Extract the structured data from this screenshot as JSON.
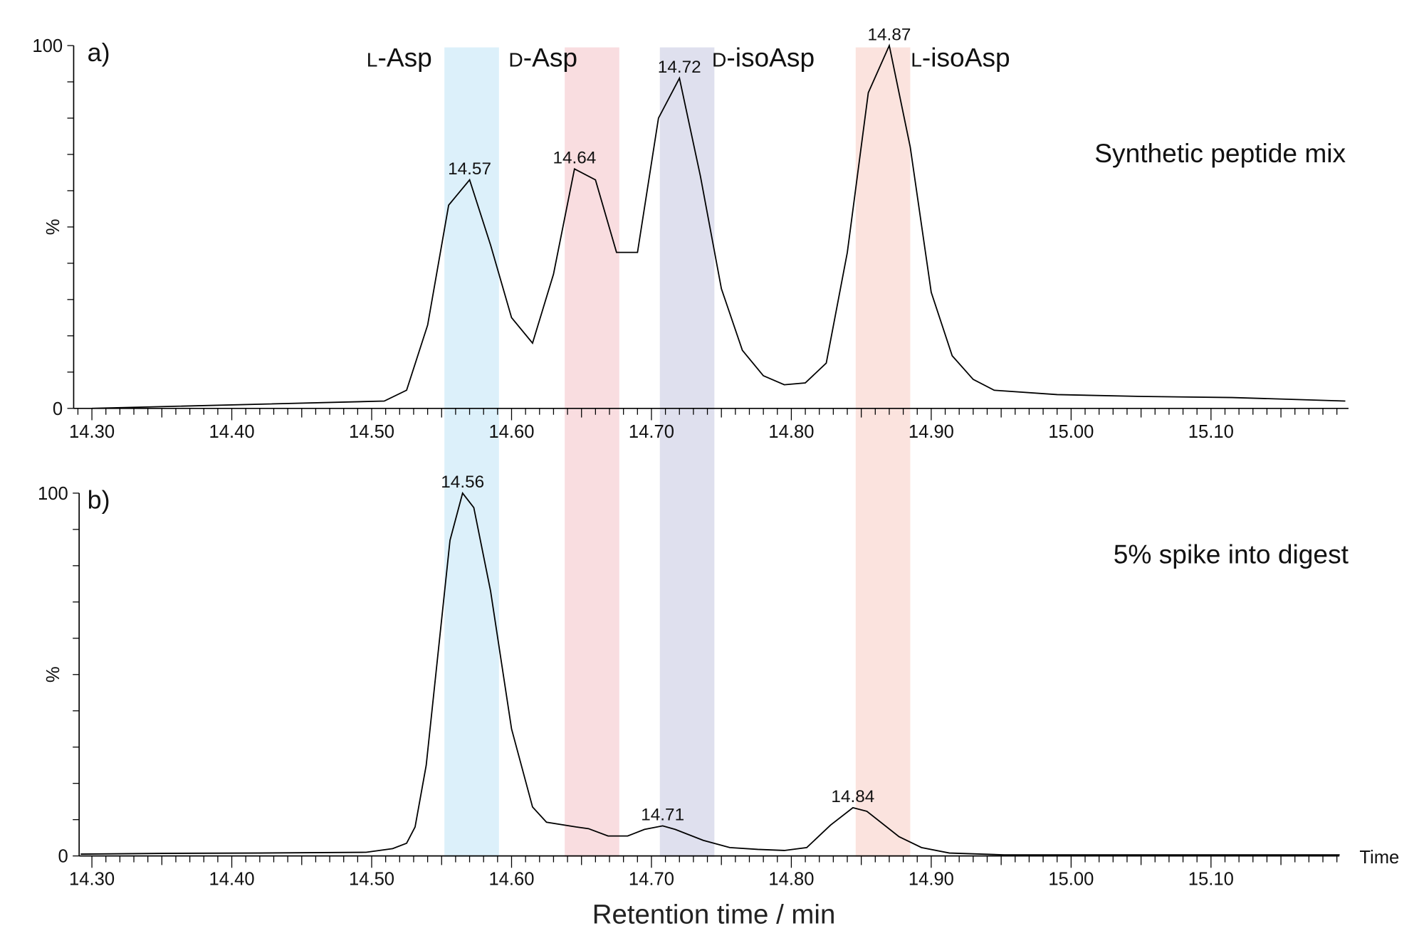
{
  "colors": {
    "L-Asp": "#dcf0fa",
    "D-Asp": "#f9dde0",
    "D-isoAsp": "#dfe0ee",
    "L-isoAsp": "#fbe3de",
    "trace": "#000000"
  },
  "bands": [
    {
      "prefix": "L",
      "name": "-Asp",
      "range": [
        14.552,
        14.591
      ],
      "color_key": "L-Asp"
    },
    {
      "prefix": "D",
      "name": "-Asp",
      "range": [
        14.638,
        14.677
      ],
      "color_key": "D-Asp"
    },
    {
      "prefix": "D",
      "name": "-isoAsp",
      "range": [
        14.706,
        14.745
      ],
      "color_key": "D-isoAsp"
    },
    {
      "prefix": "L",
      "name": "-isoAsp",
      "range": [
        14.846,
        14.885
      ],
      "color_key": "L-isoAsp"
    }
  ],
  "xlabel": "Retention time / min",
  "x_axis_end_label": "Time",
  "chart_data": [
    {
      "type": "line",
      "panel_label": "a)",
      "title": "Synthetic peptide mix",
      "ylabel": "%",
      "xlim": [
        14.287,
        15.196
      ],
      "ylim": [
        0,
        100
      ],
      "x_ticks": [
        "14.30",
        "14.40",
        "14.50",
        "14.60",
        "14.70",
        "14.80",
        "14.90",
        "15.00",
        "15.10"
      ],
      "y_tick_labels": [
        "0",
        "100"
      ],
      "grid": false,
      "x": [
        14.3,
        14.509,
        14.525,
        14.54,
        14.555,
        14.57,
        14.585,
        14.6,
        14.615,
        14.63,
        14.645,
        14.66,
        14.675,
        14.69,
        14.705,
        14.72,
        14.735,
        14.75,
        14.765,
        14.78,
        14.795,
        14.81,
        14.825,
        14.84,
        14.855,
        14.87,
        14.885,
        14.9,
        14.915,
        14.93,
        14.945,
        14.99,
        15.05,
        15.115,
        15.196
      ],
      "y": [
        0,
        2,
        5,
        23,
        56,
        63,
        45,
        25,
        18,
        37,
        66,
        63,
        43,
        43,
        80,
        91,
        64,
        33,
        16,
        9,
        6.5,
        7,
        12.5,
        43,
        87,
        100,
        72,
        32,
        14.5,
        8,
        5,
        3.8,
        3.3,
        3,
        2
      ],
      "peak_labels": [
        {
          "text": "14.57",
          "x": 14.57,
          "y": 63
        },
        {
          "text": "14.64",
          "x": 14.645,
          "y": 66
        },
        {
          "text": "14.72",
          "x": 14.72,
          "y": 91
        },
        {
          "text": "14.87",
          "x": 14.87,
          "y": 100
        }
      ]
    },
    {
      "type": "line",
      "panel_label": "b)",
      "title": "5% spike into digest",
      "ylabel": "%",
      "xlim": [
        14.287,
        15.196
      ],
      "ylim": [
        0,
        100
      ],
      "x_ticks": [
        "14.30",
        "14.40",
        "14.50",
        "14.60",
        "14.70",
        "14.80",
        "14.90",
        "15.00",
        "15.10"
      ],
      "y_tick_labels": [
        "0",
        "100"
      ],
      "grid": false,
      "x": [
        14.292,
        14.35,
        14.42,
        14.496,
        14.515,
        14.525,
        14.531,
        14.539,
        14.556,
        14.565,
        14.573,
        14.585,
        14.6,
        14.615,
        14.625,
        14.646,
        14.655,
        14.669,
        14.683,
        14.695,
        14.708,
        14.717,
        14.737,
        14.756,
        14.776,
        14.795,
        14.811,
        14.828,
        14.844,
        14.854,
        14.877,
        14.893,
        14.913,
        14.952,
        15.192
      ],
      "y": [
        0.5,
        0.7,
        0.8,
        1,
        2,
        3.5,
        8,
        25,
        87,
        100,
        96,
        73,
        35,
        13.5,
        9.3,
        8,
        7.5,
        5.5,
        5.5,
        7.3,
        8.3,
        7.3,
        4.3,
        2.3,
        1.8,
        1.5,
        2.3,
        8.5,
        13.3,
        12.3,
        5.3,
        2.3,
        0.8,
        0.3,
        0.3
      ],
      "peak_labels": [
        {
          "text": "14.56",
          "x": 14.565,
          "y": 100
        },
        {
          "text": "14.71",
          "x": 14.708,
          "y": 8.3
        },
        {
          "text": "14.84",
          "x": 14.844,
          "y": 13.3
        }
      ]
    }
  ]
}
